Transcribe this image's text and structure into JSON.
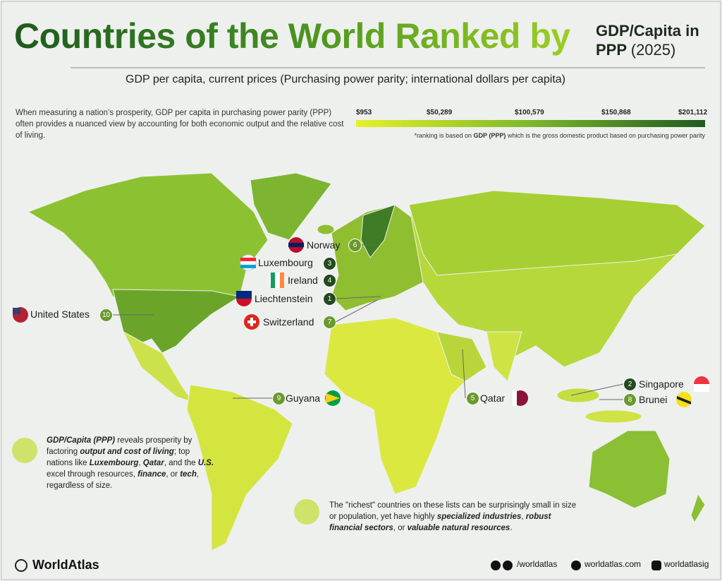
{
  "header": {
    "title": "Countries of the World Ranked by",
    "title_side": [
      "GDP/Capita in",
      "PPP",
      "(2025)"
    ],
    "subtitle": "GDP per capita, current prices (Purchasing power parity; international dollars per capita)"
  },
  "intro": "When measuring a nation’s prosperity, GDP per capita in purchasing power parity (PPP) often provides a nuanced view by accounting for both economic output and the relative cost of living.",
  "legend": {
    "labels": [
      "$953",
      "$50,289",
      "$100,579",
      "$150,868",
      "$201,112"
    ],
    "note": [
      "*ranking is based on ",
      "GDP (PPP)",
      " which is the gross domestic product based on purchasing power parity"
    ]
  },
  "countries": [
    {
      "name": "Norway",
      "rank": 6
    },
    {
      "name": "Luxembourg",
      "rank": 3
    },
    {
      "name": "Ireland",
      "rank": 4
    },
    {
      "name": "Liechtenstein",
      "rank": 1
    },
    {
      "name": "United States",
      "rank": 10
    },
    {
      "name": "Switzerland",
      "rank": 7
    },
    {
      "name": "Guyana",
      "rank": 9
    },
    {
      "name": "Qatar",
      "rank": 5
    },
    {
      "name": "Singapore",
      "rank": 2
    },
    {
      "name": "Brunei",
      "rank": 8
    }
  ],
  "callouts": [
    [
      "GDP/Capita (PPP)",
      " reveals prosperity by factoring ",
      "output and cost of living",
      "; top nations like ",
      "Luxembourg",
      ", ",
      "Qatar",
      ", and the ",
      "U.S.",
      " excel through resources, ",
      "finance",
      ", or ",
      "tech",
      ", regardless of size."
    ],
    [
      "The \"richest\" countries on these lists can be surprisingly small in size or population, yet have highly ",
      "specialized industries",
      ", ",
      "robust financial sectors",
      ", or ",
      "valuable natural resources",
      "."
    ]
  ],
  "footer": {
    "brand": "WorldAtlas",
    "links": [
      "/worldatlas",
      "worldatlas.com",
      "worldatlasig"
    ]
  }
}
